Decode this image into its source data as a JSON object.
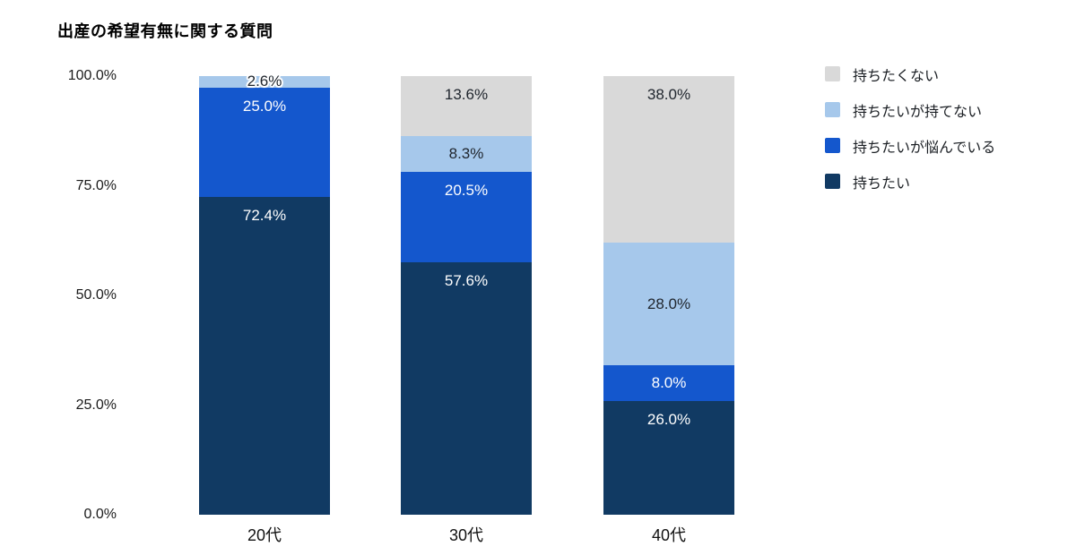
{
  "title": "出産の希望有無に関する質問",
  "colors": {
    "background": "#ffffff",
    "axis_text": "#1a1a1a",
    "dark_label": "#20262e",
    "light_label": "#ffffff"
  },
  "chart_data": {
    "type": "bar",
    "stacked": true,
    "title": "出産の希望有無に関する質問",
    "categories": [
      "20代",
      "30代",
      "40代"
    ],
    "series": [
      {
        "name": "持ちたくない",
        "color": "#d9d9d9",
        "label_color": "#20262e",
        "values": [
          0,
          13.6,
          38.0
        ],
        "label_pos": [
          null,
          "top",
          "top"
        ]
      },
      {
        "name": "持ちたいが持てない",
        "color": "#a6c8eb",
        "label_color": "#20262e",
        "values": [
          2.6,
          8.3,
          28.0
        ],
        "label_pos": [
          "straddle",
          "center",
          "center"
        ]
      },
      {
        "name": "持ちたいが悩んでいる",
        "color": "#1457cd",
        "label_color": "#ffffff",
        "values": [
          25.0,
          20.5,
          8.0
        ],
        "label_pos": [
          "top",
          "top",
          "center"
        ]
      },
      {
        "name": "持ちたい",
        "color": "#113a63",
        "label_color": "#ffffff",
        "values": [
          72.4,
          57.6,
          26.0
        ],
        "label_pos": [
          "top",
          "top",
          "top"
        ]
      }
    ],
    "y_ticks": [
      "100.0%",
      "75.0%",
      "50.0%",
      "25.0%",
      "0.0%"
    ],
    "ylim": [
      0,
      100
    ],
    "value_suffix": "%",
    "value_decimals": 1,
    "grid": false,
    "legend_position": "right",
    "legend_items": [
      "持ちたくない",
      "持ちたいが持てない",
      "持ちたいが悩んでいる",
      "持ちたい"
    ]
  }
}
